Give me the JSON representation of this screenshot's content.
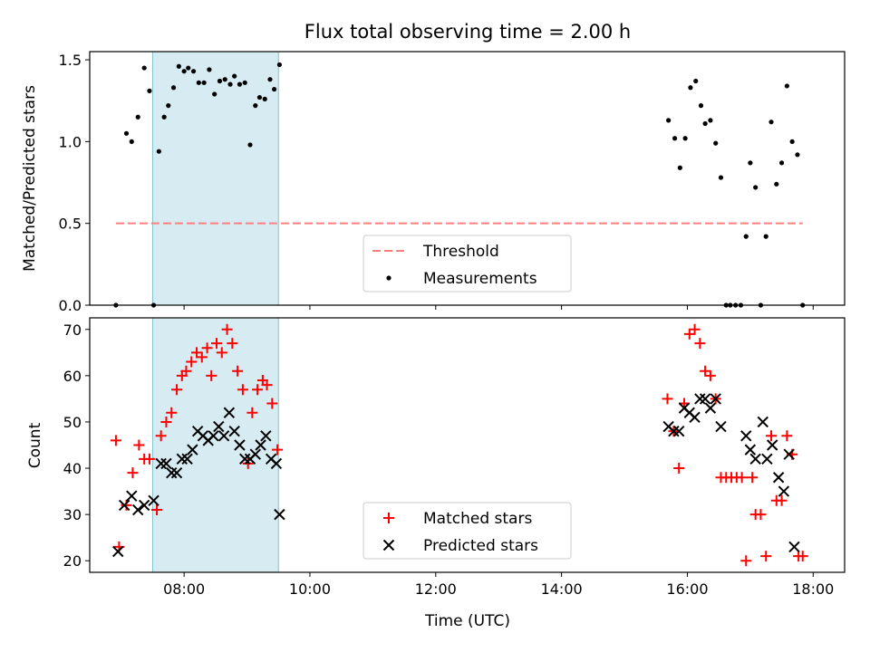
{
  "chart_data": [
    {
      "type": "scatter",
      "title": "Flux total observing time = 2.00 h",
      "xlabel": "",
      "ylabel": "Matched/Predicted stars",
      "xlim": [
        "06:30",
        "18:30"
      ],
      "ylim": [
        0,
        1.55
      ],
      "yticks": [
        "0.0",
        "0.5",
        "1.0",
        "1.5"
      ],
      "shaded_interval": [
        "07:30",
        "09:30"
      ],
      "threshold": {
        "name": "Threshold",
        "value": 0.5,
        "x_range": [
          "06:55",
          "17:50"
        ],
        "color": "#ff7f7f"
      },
      "series": [
        {
          "name": "Measurements",
          "marker": "dot",
          "color": "#000000",
          "points": [
            [
              "06:55",
              0
            ],
            [
              "07:05",
              1.05
            ],
            [
              "07:10",
              1.0
            ],
            [
              "07:16",
              1.15
            ],
            [
              "07:22",
              1.45
            ],
            [
              "07:27",
              1.31
            ],
            [
              "07:31",
              0
            ],
            [
              "07:36",
              0.94
            ],
            [
              "07:41",
              1.15
            ],
            [
              "07:45",
              1.22
            ],
            [
              "07:50",
              1.33
            ],
            [
              "07:55",
              1.46
            ],
            [
              "08:00",
              1.43
            ],
            [
              "08:04",
              1.45
            ],
            [
              "08:09",
              1.43
            ],
            [
              "08:14",
              1.36
            ],
            [
              "08:19",
              1.36
            ],
            [
              "08:24",
              1.44
            ],
            [
              "08:29",
              1.29
            ],
            [
              "08:34",
              1.37
            ],
            [
              "08:39",
              1.38
            ],
            [
              "08:44",
              1.35
            ],
            [
              "08:48",
              1.4
            ],
            [
              "08:53",
              1.35
            ],
            [
              "08:58",
              1.36
            ],
            [
              "09:03",
              0.98
            ],
            [
              "09:08",
              1.22
            ],
            [
              "09:12",
              1.27
            ],
            [
              "09:17",
              1.26
            ],
            [
              "09:22",
              1.38
            ],
            [
              "09:26",
              1.32
            ],
            [
              "09:31",
              1.47
            ],
            [
              "15:42",
              1.13
            ],
            [
              "15:48",
              1.02
            ],
            [
              "15:53",
              0.84
            ],
            [
              "15:58",
              1.02
            ],
            [
              "16:03",
              1.33
            ],
            [
              "16:08",
              1.37
            ],
            [
              "16:13",
              1.22
            ],
            [
              "16:17",
              1.11
            ],
            [
              "16:22",
              1.13
            ],
            [
              "16:27",
              0.99
            ],
            [
              "16:32",
              0.78
            ],
            [
              "16:37",
              0
            ],
            [
              "16:41",
              0
            ],
            [
              "16:46",
              0
            ],
            [
              "16:51",
              0
            ],
            [
              "16:56",
              0.42
            ],
            [
              "17:00",
              0.87
            ],
            [
              "17:05",
              0.72
            ],
            [
              "17:10",
              0
            ],
            [
              "17:15",
              0.42
            ],
            [
              "17:20",
              1.12
            ],
            [
              "17:25",
              0.74
            ],
            [
              "17:30",
              0.87
            ],
            [
              "17:35",
              1.34
            ],
            [
              "17:40",
              1.0
            ],
            [
              "17:45",
              0.92
            ],
            [
              "17:50",
              0
            ]
          ]
        }
      ]
    },
    {
      "type": "scatter",
      "title": "",
      "xlabel": "Time (UTC)",
      "ylabel": "Count",
      "xlim": [
        "06:30",
        "18:30"
      ],
      "ylim": [
        17.5,
        72.5
      ],
      "xticks": [
        "08:00",
        "10:00",
        "12:00",
        "14:00",
        "16:00",
        "18:00"
      ],
      "yticks": [
        "20",
        "30",
        "40",
        "50",
        "60",
        "70"
      ],
      "shaded_interval": [
        "07:30",
        "09:30"
      ],
      "series": [
        {
          "name": "Matched stars",
          "marker": "plus",
          "color": "#ff0000",
          "points": [
            [
              "06:55",
              46
            ],
            [
              "06:58",
              23
            ],
            [
              "07:05",
              32
            ],
            [
              "07:11",
              39
            ],
            [
              "07:17",
              45
            ],
            [
              "07:22",
              42
            ],
            [
              "07:27",
              42
            ],
            [
              "07:34",
              31
            ],
            [
              "07:38",
              47
            ],
            [
              "07:43",
              50
            ],
            [
              "07:48",
              52
            ],
            [
              "07:53",
              57
            ],
            [
              "07:58",
              60
            ],
            [
              "08:02",
              61
            ],
            [
              "08:07",
              63
            ],
            [
              "08:12",
              65
            ],
            [
              "08:17",
              64
            ],
            [
              "08:22",
              66
            ],
            [
              "08:26",
              60
            ],
            [
              "08:31",
              67
            ],
            [
              "08:36",
              65
            ],
            [
              "08:41",
              70
            ],
            [
              "08:46",
              67
            ],
            [
              "08:51",
              61
            ],
            [
              "08:56",
              57
            ],
            [
              "09:01",
              41
            ],
            [
              "09:05",
              52
            ],
            [
              "09:10",
              57
            ],
            [
              "09:15",
              59
            ],
            [
              "09:19",
              58
            ],
            [
              "09:24",
              54
            ],
            [
              "09:29",
              44
            ],
            [
              "15:41",
              55
            ],
            [
              "15:47",
              48
            ],
            [
              "15:52",
              40
            ],
            [
              "15:57",
              54
            ],
            [
              "16:02",
              69
            ],
            [
              "16:07",
              70
            ],
            [
              "16:12",
              67
            ],
            [
              "16:17",
              61
            ],
            [
              "16:22",
              60
            ],
            [
              "16:27",
              55
            ],
            [
              "16:32",
              38
            ],
            [
              "16:37",
              38
            ],
            [
              "16:42",
              38
            ],
            [
              "16:47",
              38
            ],
            [
              "16:52",
              38
            ],
            [
              "16:56",
              20
            ],
            [
              "17:02",
              38
            ],
            [
              "17:05",
              30
            ],
            [
              "17:10",
              30
            ],
            [
              "17:15",
              21
            ],
            [
              "17:20",
              47
            ],
            [
              "17:25",
              33
            ],
            [
              "17:30",
              33
            ],
            [
              "17:35",
              47
            ],
            [
              "17:40",
              43
            ],
            [
              "17:46",
              21
            ],
            [
              "17:50",
              21
            ]
          ]
        },
        {
          "name": "Predicted stars",
          "marker": "x",
          "color": "#000000",
          "points": [
            [
              "06:57",
              22
            ],
            [
              "07:03",
              32
            ],
            [
              "07:10",
              34
            ],
            [
              "07:16",
              31
            ],
            [
              "07:22",
              32
            ],
            [
              "07:31",
              33
            ],
            [
              "07:38",
              41
            ],
            [
              "07:43",
              41
            ],
            [
              "07:48",
              39
            ],
            [
              "07:53",
              39
            ],
            [
              "07:58",
              42
            ],
            [
              "08:03",
              42
            ],
            [
              "08:08",
              44
            ],
            [
              "08:13",
              48
            ],
            [
              "08:18",
              47
            ],
            [
              "08:23",
              46
            ],
            [
              "08:28",
              47
            ],
            [
              "08:33",
              49
            ],
            [
              "08:38",
              47
            ],
            [
              "08:43",
              52
            ],
            [
              "08:48",
              48
            ],
            [
              "08:53",
              45
            ],
            [
              "08:58",
              42
            ],
            [
              "09:03",
              42
            ],
            [
              "09:08",
              43
            ],
            [
              "09:13",
              45
            ],
            [
              "09:18",
              47
            ],
            [
              "09:23",
              42
            ],
            [
              "09:28",
              41
            ],
            [
              "09:31",
              30
            ],
            [
              "15:42",
              49
            ],
            [
              "15:47",
              48
            ],
            [
              "15:52",
              48
            ],
            [
              "15:57",
              53
            ],
            [
              "16:02",
              52
            ],
            [
              "16:07",
              51
            ],
            [
              "16:12",
              55
            ],
            [
              "16:17",
              55
            ],
            [
              "16:22",
              53
            ],
            [
              "16:27",
              55
            ],
            [
              "16:32",
              49
            ],
            [
              "16:56",
              47
            ],
            [
              "17:00",
              44
            ],
            [
              "17:05",
              42
            ],
            [
              "17:12",
              50
            ],
            [
              "17:16",
              42
            ],
            [
              "17:21",
              45
            ],
            [
              "17:27",
              38
            ],
            [
              "17:32",
              35
            ],
            [
              "17:37",
              43
            ],
            [
              "17:42",
              23
            ]
          ]
        }
      ]
    }
  ]
}
